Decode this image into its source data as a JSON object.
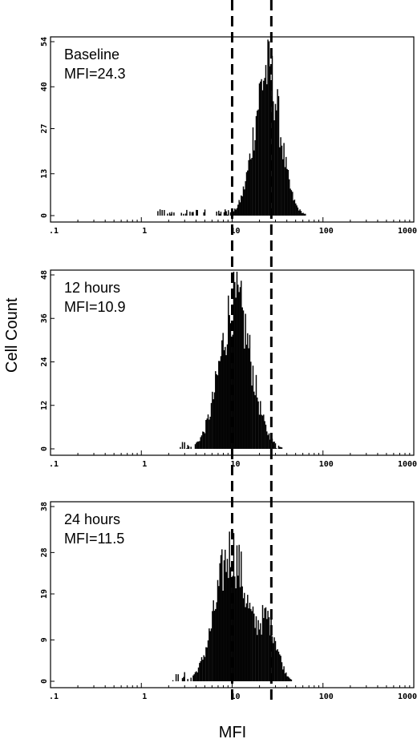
{
  "figure": {
    "ylabel": "Cell Count",
    "xlabel": "MFI"
  },
  "chart_data": [
    {
      "type": "bar",
      "annotation": [
        "Baseline",
        "MFI=24.3"
      ],
      "x_scale": "log",
      "xlim": [
        0.1,
        1000
      ],
      "x_ticks": [
        ".1",
        "1",
        "10",
        "100",
        "1000"
      ],
      "ylim": [
        0,
        54
      ],
      "y_ticks": [
        "54",
        "40",
        "27",
        "13",
        "0"
      ],
      "y_tick_values": [
        54,
        40,
        27,
        13,
        0
      ],
      "mfi": 24.3,
      "peaks": [
        {
          "center": 24.3,
          "height": 45,
          "width_log10": 0.14
        }
      ],
      "spread": [
        1.5,
        50
      ]
    },
    {
      "type": "bar",
      "annotation": [
        "12 hours",
        "MFI=10.9"
      ],
      "x_scale": "log",
      "xlim": [
        0.1,
        1000
      ],
      "x_ticks": [
        ".1",
        "1",
        "10",
        "100",
        "1000"
      ],
      "ylim": [
        0,
        48
      ],
      "y_ticks": [
        "48",
        "36",
        "24",
        "12",
        "0"
      ],
      "y_tick_values": [
        48,
        36,
        24,
        12,
        0
      ],
      "mfi": 10.9,
      "peaks": [
        {
          "center": 10.9,
          "height": 40,
          "width_log10": 0.17
        }
      ],
      "spread": [
        2.5,
        32
      ]
    },
    {
      "type": "bar",
      "annotation": [
        "24 hours",
        "MFI=11.5"
      ],
      "x_scale": "log",
      "xlim": [
        0.1,
        1000
      ],
      "x_ticks": [
        ".1",
        "1",
        "10",
        "100",
        "1000"
      ],
      "ylim": [
        0,
        38
      ],
      "y_ticks": [
        "38",
        "28",
        "19",
        "9",
        "0"
      ],
      "y_tick_values": [
        38,
        28,
        19,
        9,
        0
      ],
      "mfi": 11.5,
      "peaks": [
        {
          "center": 9.8,
          "height": 28,
          "width_log10": 0.17
        },
        {
          "center": 25,
          "height": 12,
          "width_log10": 0.1
        }
      ],
      "spread": [
        2.2,
        36
      ]
    }
  ],
  "reference_lines": [
    10,
    27
  ]
}
